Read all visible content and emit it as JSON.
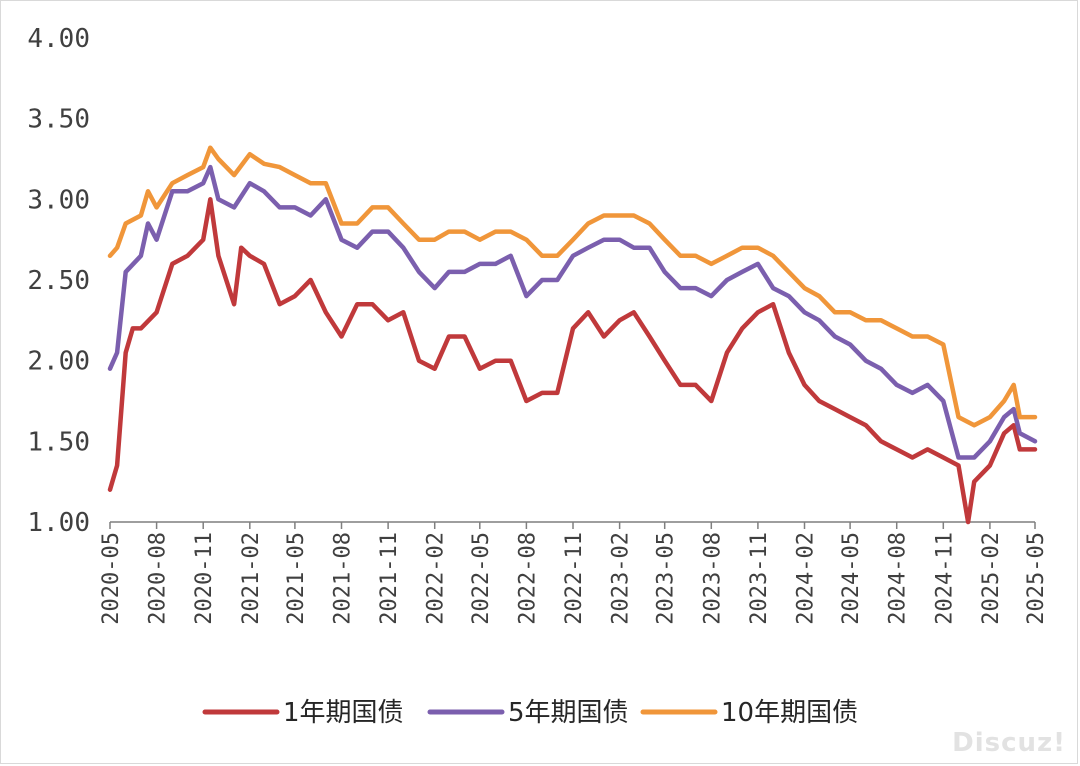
{
  "watermark": "Discuz!",
  "chart_data": {
    "type": "line",
    "title": "",
    "xlabel": "",
    "ylabel": "",
    "ylim": [
      1.0,
      4.0
    ],
    "yticks": [
      "1.00",
      "1.50",
      "2.00",
      "2.50",
      "3.00",
      "3.50",
      "4.00"
    ],
    "xlim": [
      "2020-05",
      "2025-05"
    ],
    "xticks": [
      "2020-05",
      "2020-08",
      "2020-11",
      "2021-02",
      "2021-05",
      "2021-08",
      "2021-11",
      "2022-02",
      "2022-05",
      "2022-08",
      "2022-11",
      "2023-02",
      "2023-05",
      "2023-08",
      "2023-11",
      "2024-02",
      "2024-05",
      "2024-08",
      "2024-11",
      "2025-02",
      "2025-05"
    ],
    "grid": false,
    "legend": "bottom",
    "series": [
      {
        "name": "1年期国债",
        "color": "#c0393b",
        "x": [
          "2020-05",
          "2020-05-15",
          "2020-06",
          "2020-06-15",
          "2020-07",
          "2020-08",
          "2020-09",
          "2020-10",
          "2020-11",
          "2020-11-15",
          "2020-12",
          "2021-01",
          "2021-01-15",
          "2021-02",
          "2021-03",
          "2021-04",
          "2021-05",
          "2021-06",
          "2021-07",
          "2021-08",
          "2021-09",
          "2021-10",
          "2021-11",
          "2021-12",
          "2022-01",
          "2022-02",
          "2022-03",
          "2022-04",
          "2022-05",
          "2022-06",
          "2022-07",
          "2022-08",
          "2022-09",
          "2022-10",
          "2022-11",
          "2022-12",
          "2023-01",
          "2023-02",
          "2023-03",
          "2023-04",
          "2023-05",
          "2023-06",
          "2023-07",
          "2023-08",
          "2023-09",
          "2023-10",
          "2023-11",
          "2023-12",
          "2024-01",
          "2024-02",
          "2024-03",
          "2024-04",
          "2024-05",
          "2024-06",
          "2024-07",
          "2024-08",
          "2024-09",
          "2024-10",
          "2024-11",
          "2024-12",
          "2024-12-20",
          "2025-01",
          "2025-02",
          "2025-03",
          "2025-03-20",
          "2025-04",
          "2025-05"
        ],
        "values": [
          1.2,
          1.35,
          2.05,
          2.2,
          2.2,
          2.3,
          2.6,
          2.65,
          2.75,
          3.0,
          2.65,
          2.35,
          2.7,
          2.65,
          2.6,
          2.35,
          2.4,
          2.5,
          2.3,
          2.15,
          2.35,
          2.35,
          2.25,
          2.3,
          2.0,
          1.95,
          2.15,
          2.15,
          1.95,
          2.0,
          2.0,
          1.75,
          1.8,
          1.8,
          2.2,
          2.3,
          2.15,
          2.25,
          2.3,
          2.15,
          2.0,
          1.85,
          1.85,
          1.75,
          2.05,
          2.2,
          2.3,
          2.35,
          2.05,
          1.85,
          1.75,
          1.7,
          1.65,
          1.6,
          1.5,
          1.45,
          1.4,
          1.45,
          1.4,
          1.35,
          1.0,
          1.25,
          1.35,
          1.55,
          1.6,
          1.45,
          1.45
        ]
      },
      {
        "name": "5年期国债",
        "color": "#7b5fae",
        "x": [
          "2020-05",
          "2020-05-15",
          "2020-06",
          "2020-07",
          "2020-07-15",
          "2020-08",
          "2020-09",
          "2020-10",
          "2020-11",
          "2020-11-15",
          "2020-12",
          "2021-01",
          "2021-02",
          "2021-03",
          "2021-04",
          "2021-05",
          "2021-06",
          "2021-07",
          "2021-08",
          "2021-09",
          "2021-10",
          "2021-11",
          "2021-12",
          "2022-01",
          "2022-02",
          "2022-03",
          "2022-04",
          "2022-05",
          "2022-06",
          "2022-07",
          "2022-08",
          "2022-09",
          "2022-10",
          "2022-11",
          "2022-12",
          "2023-01",
          "2023-02",
          "2023-03",
          "2023-04",
          "2023-05",
          "2023-06",
          "2023-07",
          "2023-08",
          "2023-09",
          "2023-10",
          "2023-11",
          "2023-12",
          "2024-01",
          "2024-02",
          "2024-03",
          "2024-04",
          "2024-05",
          "2024-06",
          "2024-07",
          "2024-08",
          "2024-09",
          "2024-10",
          "2024-11",
          "2024-12",
          "2025-01",
          "2025-02",
          "2025-03",
          "2025-03-20",
          "2025-04",
          "2025-05"
        ],
        "values": [
          1.95,
          2.05,
          2.55,
          2.65,
          2.85,
          2.75,
          3.05,
          3.05,
          3.1,
          3.2,
          3.0,
          2.95,
          3.1,
          3.05,
          2.95,
          2.95,
          2.9,
          3.0,
          2.75,
          2.7,
          2.8,
          2.8,
          2.7,
          2.55,
          2.45,
          2.55,
          2.55,
          2.6,
          2.6,
          2.65,
          2.4,
          2.5,
          2.5,
          2.65,
          2.7,
          2.75,
          2.75,
          2.7,
          2.7,
          2.55,
          2.45,
          2.45,
          2.4,
          2.5,
          2.55,
          2.6,
          2.45,
          2.4,
          2.3,
          2.25,
          2.15,
          2.1,
          2.0,
          1.95,
          1.85,
          1.8,
          1.85,
          1.75,
          1.4,
          1.4,
          1.5,
          1.65,
          1.7,
          1.55,
          1.5
        ]
      },
      {
        "name": "10年期国债",
        "color": "#f0963a",
        "x": [
          "2020-05",
          "2020-05-15",
          "2020-06",
          "2020-07",
          "2020-07-15",
          "2020-08",
          "2020-09",
          "2020-10",
          "2020-11",
          "2020-11-15",
          "2020-12",
          "2021-01",
          "2021-02",
          "2021-03",
          "2021-04",
          "2021-05",
          "2021-06",
          "2021-07",
          "2021-08",
          "2021-09",
          "2021-10",
          "2021-11",
          "2021-12",
          "2022-01",
          "2022-02",
          "2022-03",
          "2022-04",
          "2022-05",
          "2022-06",
          "2022-07",
          "2022-08",
          "2022-09",
          "2022-10",
          "2022-11",
          "2022-12",
          "2023-01",
          "2023-02",
          "2023-03",
          "2023-04",
          "2023-05",
          "2023-06",
          "2023-07",
          "2023-08",
          "2023-09",
          "2023-10",
          "2023-11",
          "2023-12",
          "2024-01",
          "2024-02",
          "2024-03",
          "2024-04",
          "2024-05",
          "2024-06",
          "2024-07",
          "2024-08",
          "2024-09",
          "2024-10",
          "2024-11",
          "2024-12",
          "2025-01",
          "2025-02",
          "2025-03",
          "2025-03-20",
          "2025-04",
          "2025-05"
        ],
        "values": [
          2.65,
          2.7,
          2.85,
          2.9,
          3.05,
          2.95,
          3.1,
          3.15,
          3.2,
          3.32,
          3.25,
          3.15,
          3.28,
          3.22,
          3.2,
          3.15,
          3.1,
          3.1,
          2.85,
          2.85,
          2.95,
          2.95,
          2.85,
          2.75,
          2.75,
          2.8,
          2.8,
          2.75,
          2.8,
          2.8,
          2.75,
          2.65,
          2.65,
          2.75,
          2.85,
          2.9,
          2.9,
          2.9,
          2.85,
          2.75,
          2.65,
          2.65,
          2.6,
          2.65,
          2.7,
          2.7,
          2.65,
          2.55,
          2.45,
          2.4,
          2.3,
          2.3,
          2.25,
          2.25,
          2.2,
          2.15,
          2.15,
          2.1,
          1.65,
          1.6,
          1.65,
          1.75,
          1.85,
          1.65,
          1.65
        ]
      }
    ]
  }
}
